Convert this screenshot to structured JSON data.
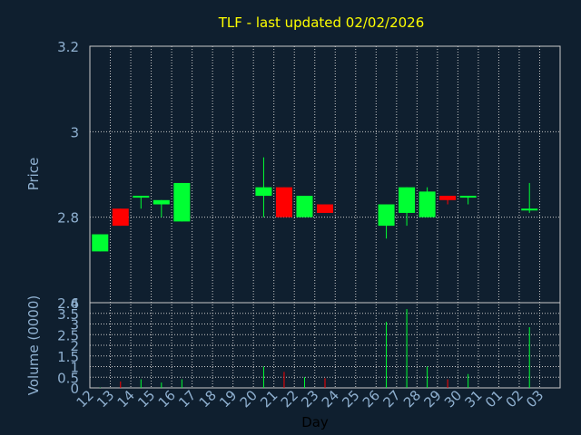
{
  "title": "TLF - last updated 02/02/2026",
  "colors": {
    "background": "#0f1f2f",
    "up": "#00ff33",
    "down": "#ff0000",
    "title": "#ffff00",
    "axis_text": "#8fb0d0"
  },
  "chart_data": [
    {
      "type": "candlestick",
      "ylabel": "Price",
      "ylim": [
        2.6,
        3.2
      ],
      "yticks": [
        "2.6",
        "2.8",
        "3",
        "3.2"
      ],
      "grid": true,
      "candles": [
        {
          "day": "12",
          "open": 2.72,
          "high": 2.76,
          "low": 2.72,
          "close": 2.76
        },
        {
          "day": "13",
          "open": 2.82,
          "high": 2.82,
          "low": 2.78,
          "close": 2.78
        },
        {
          "day": "14",
          "open": 2.85,
          "high": 2.85,
          "low": 2.82,
          "close": 2.85
        },
        {
          "day": "15",
          "open": 2.83,
          "high": 2.84,
          "low": 2.8,
          "close": 2.84
        },
        {
          "day": "16",
          "open": 2.79,
          "high": 2.88,
          "low": 2.79,
          "close": 2.88
        },
        {
          "day": "20",
          "open": 2.85,
          "high": 2.94,
          "low": 2.8,
          "close": 2.87
        },
        {
          "day": "21",
          "open": 2.87,
          "high": 2.87,
          "low": 2.8,
          "close": 2.8
        },
        {
          "day": "22",
          "open": 2.8,
          "high": 2.85,
          "low": 2.8,
          "close": 2.85
        },
        {
          "day": "23",
          "open": 2.83,
          "high": 2.83,
          "low": 2.81,
          "close": 2.81
        },
        {
          "day": "26",
          "open": 2.78,
          "high": 2.83,
          "low": 2.75,
          "close": 2.83
        },
        {
          "day": "27",
          "open": 2.81,
          "high": 2.87,
          "low": 2.78,
          "close": 2.87
        },
        {
          "day": "28",
          "open": 2.8,
          "high": 2.87,
          "low": 2.8,
          "close": 2.86
        },
        {
          "day": "29",
          "open": 2.85,
          "high": 2.85,
          "low": 2.83,
          "close": 2.84
        },
        {
          "day": "30",
          "open": 2.85,
          "high": 2.85,
          "low": 2.83,
          "close": 2.85
        },
        {
          "day": "02",
          "open": 2.82,
          "high": 2.88,
          "low": 2.81,
          "close": 2.82
        }
      ]
    },
    {
      "type": "bar",
      "ylabel": "Volume (0000)",
      "xlabel": "Day",
      "ylim": [
        0,
        4
      ],
      "yticks": [
        "0",
        "0.5",
        "1",
        "1.5",
        "2",
        "2.5",
        "3",
        "3.5",
        "4"
      ],
      "grid": true,
      "categories": [
        "12",
        "13",
        "14",
        "15",
        "16",
        "17",
        "18",
        "19",
        "20",
        "21",
        "22",
        "23",
        "24",
        "25",
        "26",
        "27",
        "28",
        "29",
        "30",
        "31",
        "01",
        "02",
        "03"
      ],
      "volumes": [
        {
          "day": "12",
          "value": 0.02,
          "dir": "up"
        },
        {
          "day": "13",
          "value": 0.3,
          "dir": "down"
        },
        {
          "day": "14",
          "value": 0.4,
          "dir": "up"
        },
        {
          "day": "15",
          "value": 0.25,
          "dir": "up"
        },
        {
          "day": "16",
          "value": 0.4,
          "dir": "up"
        },
        {
          "day": "20",
          "value": 1.0,
          "dir": "up"
        },
        {
          "day": "21",
          "value": 0.75,
          "dir": "down"
        },
        {
          "day": "22",
          "value": 0.5,
          "dir": "up"
        },
        {
          "day": "23",
          "value": 0.45,
          "dir": "down"
        },
        {
          "day": "26",
          "value": 3.1,
          "dir": "up"
        },
        {
          "day": "27",
          "value": 3.7,
          "dir": "up"
        },
        {
          "day": "28",
          "value": 1.0,
          "dir": "up"
        },
        {
          "day": "29",
          "value": 0.4,
          "dir": "down"
        },
        {
          "day": "30",
          "value": 0.65,
          "dir": "up"
        },
        {
          "day": "02",
          "value": 2.85,
          "dir": "up"
        }
      ]
    }
  ]
}
